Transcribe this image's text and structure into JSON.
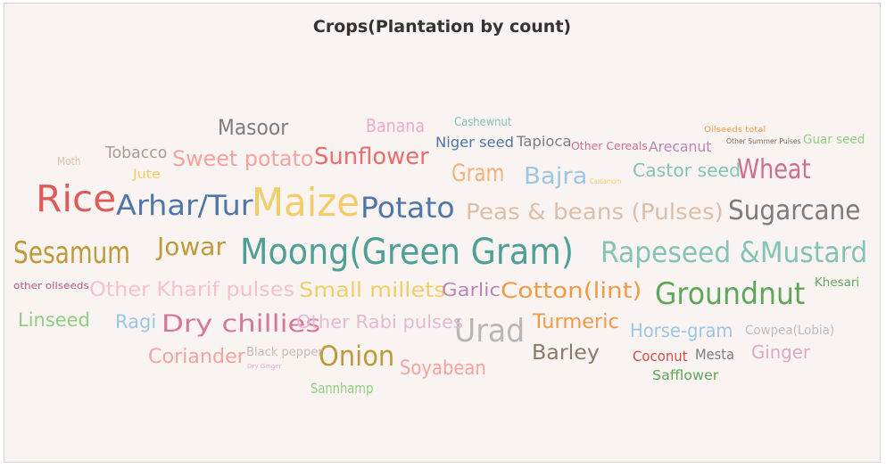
{
  "chart_title": "Crops(Plantation by count)",
  "chart_data": {
    "type": "word_cloud",
    "title": "Crops(Plantation by count)",
    "encoding": "word size = plantation count (relative, estimated from font size)",
    "words": [
      {
        "text": "Moong(Green Gram)",
        "size": 40,
        "color": "#4e9f96"
      },
      {
        "text": "Maize",
        "size": 44,
        "color": "#f2cd6a"
      },
      {
        "text": "Rice",
        "size": 41,
        "color": "#e05a5a"
      },
      {
        "text": "Sesamum",
        "size": 34,
        "color": "#bf9a3a"
      },
      {
        "text": "Groundnut",
        "size": 34,
        "color": "#5fa65a"
      },
      {
        "text": "Rapeseed &Mustard",
        "size": 32,
        "color": "#85c3b7"
      },
      {
        "text": "Urad",
        "size": 36,
        "color": "#b7b7b7"
      },
      {
        "text": "Potato",
        "size": 32,
        "color": "#4e76a8"
      },
      {
        "text": "Arhar/Tur",
        "size": 31,
        "color": "#4e76a8"
      },
      {
        "text": "Sugarcane",
        "size": 30,
        "color": "#7c7c7c"
      },
      {
        "text": "Onion",
        "size": 31,
        "color": "#bf9a3a"
      },
      {
        "text": "Wheat",
        "size": 30,
        "color": "#cf6f8b"
      },
      {
        "text": "Jowar",
        "size": 28,
        "color": "#bf9a3a"
      },
      {
        "text": "Gram",
        "size": 27,
        "color": "#f4b27b"
      },
      {
        "text": "Dry chillies",
        "size": 27,
        "color": "#d5769a"
      },
      {
        "text": "Sunflower",
        "size": 26,
        "color": "#e86e6b"
      },
      {
        "text": "Bajra",
        "size": 26,
        "color": "#9dc6e4"
      },
      {
        "text": "Masoor",
        "size": 24,
        "color": "#7d7d7d"
      },
      {
        "text": "Peas & beans (Pulses)",
        "size": 25,
        "color": "#dcbfaa"
      },
      {
        "text": "Cotton(lint)",
        "size": 24,
        "color": "#f19a48"
      },
      {
        "text": "Sweet potato",
        "size": 24,
        "color": "#f5a3a0"
      },
      {
        "text": "Small millets",
        "size": 23,
        "color": "#f2cd6a"
      },
      {
        "text": "Barley",
        "size": 23,
        "color": "#8d7a6b"
      },
      {
        "text": "Soyabean",
        "size": 22,
        "color": "#f5a3a0"
      },
      {
        "text": "Other Kharif pulses",
        "size": 22,
        "color": "#f6c1cc"
      },
      {
        "text": "Coriander",
        "size": 22,
        "color": "#f5a3a0"
      },
      {
        "text": "Turmeric",
        "size": 22,
        "color": "#f19a48"
      },
      {
        "text": "Linseed",
        "size": 21,
        "color": "#8fcf83"
      },
      {
        "text": "Ragi",
        "size": 21,
        "color": "#9dc6e4"
      },
      {
        "text": "Horse-gram",
        "size": 21,
        "color": "#9dc6e4"
      },
      {
        "text": "Garlic",
        "size": 20,
        "color": "#bb86b6"
      },
      {
        "text": "Banana",
        "size": 20,
        "color": "#f0a9cb"
      },
      {
        "text": "Other Rabi pulses",
        "size": 20,
        "color": "#e7b8d3"
      },
      {
        "text": "Castor seed",
        "size": 20,
        "color": "#85c3b7"
      },
      {
        "text": "Ginger",
        "size": 20,
        "color": "#dfa8c4"
      },
      {
        "text": "Tobacco",
        "size": 18,
        "color": "#a99b93"
      },
      {
        "text": "Sannhamp",
        "size": 16,
        "color": "#8fcf83"
      },
      {
        "text": "Niger seed",
        "size": 16,
        "color": "#4e76a8"
      },
      {
        "text": "Tapioca",
        "size": 16,
        "color": "#7d7d7d"
      },
      {
        "text": "Arecanut",
        "size": 16,
        "color": "#bb86b6"
      },
      {
        "text": "Coconut",
        "size": 16,
        "color": "#d74a4a"
      },
      {
        "text": "Mesta",
        "size": 16,
        "color": "#7d7d7d"
      },
      {
        "text": "Safflower",
        "size": 15,
        "color": "#5fa65a"
      },
      {
        "text": "Jute",
        "size": 14,
        "color": "#f2cd6a"
      },
      {
        "text": "Cowpea(Lobia)",
        "size": 14,
        "color": "#bebebe"
      },
      {
        "text": "Guar seed",
        "size": 14,
        "color": "#8fcf83"
      },
      {
        "text": "Black pepper",
        "size": 13,
        "color": "#c8bbb3"
      },
      {
        "text": "Cashewnut",
        "size": 13,
        "color": "#85c3b7"
      },
      {
        "text": "Khesari",
        "size": 13,
        "color": "#5fa65a"
      },
      {
        "text": "Moth",
        "size": 12,
        "color": "#dcbfaa"
      },
      {
        "text": "Other Cereals",
        "size": 12,
        "color": "#cf6f8b"
      },
      {
        "text": "other oilseeds",
        "size": 11,
        "color": "#b9548a"
      },
      {
        "text": "Oilseeds total",
        "size": 9,
        "color": "#f19a48"
      },
      {
        "text": "Other Summer Pulses",
        "size": 8,
        "color": "#7c6a55"
      },
      {
        "text": "Cardamom",
        "size": 8,
        "color": "#f2cd6a"
      },
      {
        "text": "Dry Ginger",
        "size": 7,
        "color": "#f0a9cb"
      }
    ]
  }
}
